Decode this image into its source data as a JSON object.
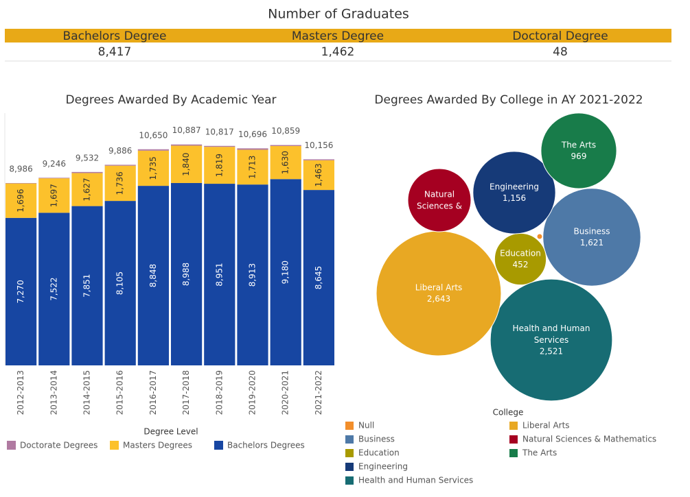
{
  "header": {
    "title": "Number of Graduates",
    "kpis": [
      {
        "label": "Bachelors Degree",
        "value": "8,417"
      },
      {
        "label": "Masters Degree",
        "value": "1,462"
      },
      {
        "label": "Doctoral Degree",
        "value": "48"
      }
    ]
  },
  "chart_data": [
    {
      "type": "stacked-bar",
      "title": "Degrees Awarded By Academic Year",
      "categories": [
        "2012-2013",
        "2013-2014",
        "2014-2015",
        "2015-2016",
        "2016-2017",
        "2017-2018",
        "2018-2019",
        "2019-2020",
        "2020-2021",
        "2021-2022"
      ],
      "series": [
        {
          "name": "Bachelors Degrees",
          "color": "#1746a2",
          "values": [
            7270,
            7522,
            7851,
            8105,
            8848,
            8988,
            8951,
            8913,
            9180,
            8645
          ],
          "value_labels": [
            "7,270",
            "7,522",
            "7,851",
            "8,105",
            "8,848",
            "8,988",
            "8,951",
            "8,913",
            "9,180",
            "8,645"
          ]
        },
        {
          "name": "Masters Degrees",
          "color": "#fcc12c",
          "values": [
            1696,
            1697,
            1627,
            1736,
            1735,
            1840,
            1819,
            1713,
            1630,
            1463
          ],
          "value_labels": [
            "1,696",
            "1,697",
            "1,627",
            "1,736",
            "1,735",
            "1,840",
            "1,819",
            "1,713",
            "1,630",
            "1,463"
          ]
        },
        {
          "name": "Doctorate Degrees",
          "color": "#b07aa1",
          "values": [
            20,
            27,
            54,
            45,
            67,
            59,
            47,
            70,
            49,
            48
          ]
        }
      ],
      "totals": [
        8986,
        9246,
        9532,
        9886,
        10650,
        10887,
        10817,
        10696,
        10859,
        10156
      ],
      "total_labels": [
        "8,986",
        "9,246",
        "9,532",
        "9,886",
        "10,650",
        "10,887",
        "10,817",
        "10,696",
        "10,859",
        "10,156"
      ],
      "ylim": [
        0,
        12500
      ],
      "legend_title": "Degree Level"
    },
    {
      "type": "packed-bubble",
      "title": "Degrees Awarded By College in AY 2021-2022",
      "categories": [
        "Null",
        "Business",
        "Education",
        "Engineering",
        "Health and Human Services",
        "Liberal Arts",
        "Natural Sciences & Mathematics",
        "The Arts"
      ],
      "bubble_names": [
        null,
        "Business",
        "Education",
        "Engineering",
        "Health and Human Services",
        "Liberal Arts",
        "Natural Sciences &",
        "The Arts"
      ],
      "values": [
        5,
        1621,
        452,
        1156,
        2521,
        2643,
        675,
        969
      ],
      "value_labels": [
        null,
        "1,621",
        "452",
        "1,156",
        "2,521",
        "2,643",
        null,
        "969"
      ],
      "colors": [
        "#f28e2b",
        "#4e79a7",
        "#a89a00",
        "#163a78",
        "#176c73",
        "#e8a823",
        "#a50021",
        "#187c4a"
      ],
      "legend_title": "College"
    }
  ]
}
